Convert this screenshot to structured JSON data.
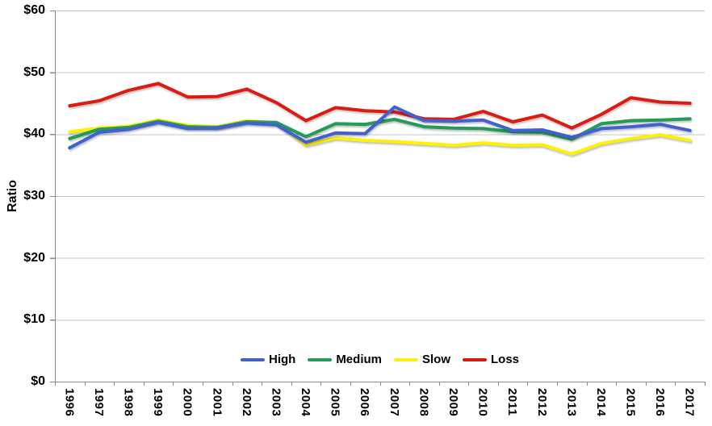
{
  "chart_data": {
    "type": "line",
    "title": "",
    "xlabel": "",
    "ylabel": "Ratio",
    "ylim": [
      0,
      60
    ],
    "y_tick_step": 10,
    "y_tick_labels": [
      "$0",
      "$10",
      "$20",
      "$30",
      "$40",
      "$50",
      "$60"
    ],
    "grid": true,
    "legend_position": "inside-bottom-center",
    "categories": [
      "1996",
      "1997",
      "1998",
      "1999",
      "2000",
      "2001",
      "2002",
      "2003",
      "2004",
      "2005",
      "2006",
      "2007",
      "2008",
      "2009",
      "2010",
      "2011",
      "2012",
      "2013",
      "2014",
      "2015",
      "2016",
      "2017"
    ],
    "series": [
      {
        "name": "High",
        "color": "#4161D2",
        "values": [
          37.8,
          40.3,
          40.8,
          41.9,
          40.9,
          41.0,
          41.8,
          41.5,
          38.7,
          40.2,
          40.1,
          44.4,
          42.2,
          42.1,
          42.3,
          40.6,
          40.7,
          39.5,
          40.9,
          41.2,
          41.6,
          40.6
        ]
      },
      {
        "name": "Medium",
        "color": "#219D58",
        "values": [
          39.3,
          40.8,
          41.1,
          42.1,
          41.2,
          41.1,
          42.0,
          41.9,
          39.6,
          41.7,
          41.6,
          42.4,
          41.2,
          41.0,
          40.9,
          40.4,
          40.3,
          39.2,
          41.7,
          42.2,
          42.3,
          42.5
        ]
      },
      {
        "name": "Slow",
        "color": "#FFF201",
        "values": [
          40.4,
          41.0,
          41.3,
          42.3,
          41.4,
          41.2,
          42.2,
          41.8,
          38.3,
          39.4,
          39.0,
          38.8,
          38.5,
          38.2,
          38.6,
          38.2,
          38.3,
          36.8,
          38.5,
          39.3,
          39.9,
          39.0
        ]
      },
      {
        "name": "Loss",
        "color": "#DD1B12",
        "values": [
          44.6,
          45.4,
          47.1,
          48.2,
          46.0,
          46.1,
          47.3,
          45.1,
          42.2,
          44.3,
          43.8,
          43.6,
          42.5,
          42.4,
          43.7,
          42.0,
          43.1,
          41.0,
          43.2,
          45.9,
          45.2,
          45.0
        ]
      }
    ],
    "colors": {
      "gridline": "#C6C6C6",
      "axis": "#8A8A8A",
      "tick_label": "#000000",
      "background": "#FFFFFF"
    }
  }
}
